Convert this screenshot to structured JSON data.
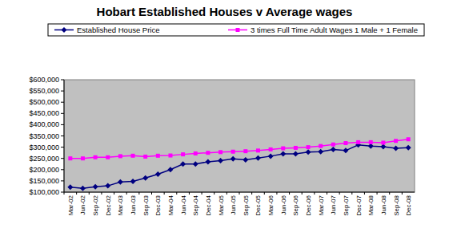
{
  "chart_data": {
    "type": "line",
    "title": "Hobart Established Houses v Average wages",
    "categories": [
      "Mar-02",
      "Jun-02",
      "Sep-02",
      "Dec-02",
      "Mar-03",
      "Jun-03",
      "Sep-03",
      "Dec-03",
      "Mar-04",
      "Jun-04",
      "Sep-04",
      "Dec-04",
      "Mar-05",
      "Jun-05",
      "Sep-05",
      "Dec-05",
      "Mar-06",
      "Jun-06",
      "Sep-06",
      "Dec-06",
      "Mar-07",
      "Jun-07",
      "Sep-07",
      "Dec-07",
      "Mar-08",
      "Jun-08",
      "Sep-08",
      "Dec-08"
    ],
    "series": [
      {
        "name": "Established House Price",
        "color": "#000080",
        "marker": "diamond",
        "values": [
          122000,
          117000,
          124000,
          128000,
          145000,
          148000,
          163000,
          180000,
          200000,
          225000,
          225000,
          235000,
          240000,
          248000,
          244000,
          252000,
          260000,
          270000,
          270000,
          278000,
          280000,
          290000,
          285000,
          310000,
          305000,
          302000,
          295000,
          298000
        ]
      },
      {
        "name": "3 times Full Time Adult Wages 1 Male + 1 Female",
        "color": "#ff00ff",
        "marker": "square",
        "values": [
          250000,
          250000,
          255000,
          255000,
          260000,
          262000,
          258000,
          262000,
          263000,
          268000,
          272000,
          275000,
          278000,
          280000,
          282000,
          285000,
          290000,
          295000,
          297000,
          300000,
          305000,
          312000,
          318000,
          322000,
          322000,
          320000,
          328000,
          335000
        ]
      }
    ],
    "ylim": [
      100000,
      600000
    ],
    "yticks": [
      {
        "value": 100000,
        "label": "$100,000"
      },
      {
        "value": 150000,
        "label": "$150,000"
      },
      {
        "value": 200000,
        "label": "$200,000"
      },
      {
        "value": 250000,
        "label": "$250,000"
      },
      {
        "value": 300000,
        "label": "$300,000"
      },
      {
        "value": 350000,
        "label": "$350,000"
      },
      {
        "value": 400000,
        "label": "$400,000"
      },
      {
        "value": 450000,
        "label": "$450,000"
      },
      {
        "value": 500000,
        "label": "$500,000"
      },
      {
        "value": 550000,
        "label": "$550,000"
      },
      {
        "value": 600000,
        "label": "$600,000"
      }
    ],
    "grid": false,
    "legend": "top"
  }
}
